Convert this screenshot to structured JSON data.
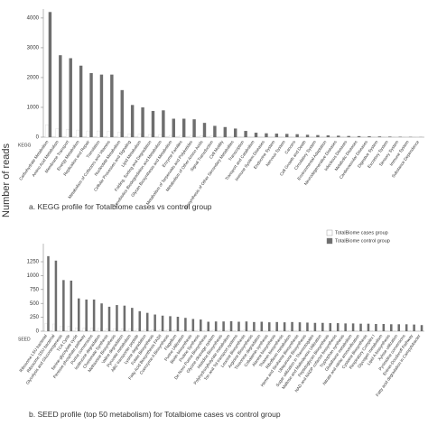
{
  "y_axis_title": "Number of reads",
  "legend_position": "right",
  "chart_data": [
    {
      "type": "bar",
      "axis_name": "KEGG",
      "caption": "a. KEGG profile for Totalbiome cases vs control group",
      "categories": [
        "Carbohydrate Metabolism",
        "Amino Acid Metabolism",
        "Membrane Transport",
        "Energy Metabolism",
        "Replication and Repair",
        "Translation",
        "Metabolism of Cofactors and Vitamins",
        "Nucleotide Metabolism",
        "Cellular Processes and Signaling",
        "Lipid Metabolism",
        "Folding, Sorting and Degradation",
        "Xenobiotics Biodegradation and Metabolism",
        "Glycan Biosynthesis and Metabolism",
        "Enzyme Families",
        "Metabolism of Terpenoids and Polyketides",
        "Metabolism of Other Amino Acids",
        "Signal Transduction",
        "Cell Motility",
        "Biosynthesis of Other Secondary Metabolites",
        "Transcription",
        "Transport and Catabolism",
        "Immune System Diseases",
        "Endocrine System",
        "Nervous System",
        "Cancers",
        "Cell Growth and Death",
        "Circulatory System",
        "Environmental Adaptation",
        "Neurodegenerative Diseases",
        "Infectious Diseases",
        "Metabolic Diseases",
        "Cardiovascular Diseases",
        "Digestive System",
        "Excretory System",
        "Sensory System",
        "Immune System",
        "Substance Dependence"
      ],
      "series": [
        {
          "name": "TotalBiome cases group",
          "color": "#ffffff",
          "values": [
            420,
            280,
            260,
            240,
            210,
            210,
            200,
            160,
            110,
            100,
            90,
            90,
            60,
            60,
            60,
            50,
            40,
            30,
            30,
            20,
            15,
            13,
            12,
            11,
            10,
            8,
            7,
            6,
            5,
            4,
            3,
            3,
            2,
            2,
            2,
            1,
            1
          ]
        },
        {
          "name": "TotalBiome control group",
          "color": "#6e6e6e",
          "values": [
            4200,
            2750,
            2650,
            2400,
            2150,
            2100,
            2100,
            1580,
            1080,
            1000,
            880,
            900,
            620,
            620,
            600,
            480,
            380,
            340,
            290,
            210,
            150,
            130,
            120,
            110,
            100,
            80,
            70,
            60,
            50,
            40,
            35,
            30,
            25,
            20,
            15,
            10,
            5
          ]
        }
      ],
      "ylim": [
        0,
        4300
      ],
      "yticks": [
        0,
        1000,
        2000,
        3000,
        4000
      ]
    },
    {
      "type": "bar",
      "axis_name": "SEED",
      "caption": "b. SEED profile (top 50 metabolism) for Totalbiome cases vs control group",
      "categories": [
        "Ribosome LSU bacterial",
        "Ribosome SSU bacterial",
        "Glycolysis and Gluconeogenesis",
        "TCA Cycle",
        "Serine-glyoxylate cycle",
        "Pentose phosphate pathway",
        "Purine conversions",
        "Isoleucine degradation",
        "Chorismate Synthesis",
        "Methionine Biosynthesis",
        "Valine degradation",
        "Pyruvate metabolism",
        "ABC transporter peptide",
        "Lysine degradation",
        "Folate Biosynthesis",
        "Fatty Acid Biosynthesis FASII",
        "Coenzyme A Biosynthesis",
        "Flagellum",
        "Purine Utilization",
        "Biotin biosynthesis",
        "Proline Synthesis",
        "De Novo Purine Biosynthesis",
        "Glycine cleavage system",
        "Histidine Biosynthesis",
        "Polyhydroxybutyrate metabolism",
        "Ton and Tol transport systems",
        "Leucine Biosynthesis",
        "Arginine Biosynthesis",
        "Threonine degradation",
        "Cobalamin synthesis",
        "Alanine biosynthesis",
        "Thiamin biosynthesis",
        "Riboflavin metabolism",
        "Heme and Siroheme Biosynthesis",
        "Ubiquinone Biosynthesis",
        "Sugar utilization in Thermotogales",
        "Maltose and Maltodextrin Utilization",
        "Peptidoglycan Biosynthesis",
        "NAD and NADP cofactor biosynthesis",
        "Tryptophan synthesis",
        "Glutathione metabolism",
        "Nitrate and nitrite ammonification",
        "Cysteine Biosynthesis",
        "Respiratory Complex I",
        "Glycogen metabolism",
        "Lipid A biosynthesis",
        "Xylose utilization",
        "Pyrimidine conversions",
        "Entner-Doudoroff Pathway",
        "Fatty acid degradation in Campylobacter"
      ],
      "series": [
        {
          "name": "TotalBiome cases group",
          "color": "#ffffff",
          "values": [
            140,
            130,
            90,
            90,
            60,
            57,
            57,
            50,
            44,
            47,
            46,
            42,
            36,
            33,
            30,
            28,
            27,
            26,
            24,
            22,
            21,
            17,
            18,
            18,
            18,
            17,
            18,
            17,
            17,
            16,
            17,
            16,
            17,
            16,
            16,
            15,
            15,
            15,
            15,
            14,
            14,
            14,
            14,
            13,
            13,
            13,
            13,
            13,
            12,
            11
          ]
        },
        {
          "name": "TotalBiome control group",
          "color": "#6e6e6e",
          "values": [
            1350,
            1270,
            920,
            910,
            590,
            570,
            570,
            500,
            440,
            470,
            460,
            420,
            360,
            330,
            300,
            280,
            270,
            260,
            240,
            220,
            210,
            170,
            175,
            175,
            180,
            170,
            175,
            165,
            170,
            160,
            165,
            160,
            165,
            160,
            155,
            150,
            150,
            145,
            145,
            140,
            140,
            135,
            135,
            130,
            130,
            125,
            125,
            125,
            120,
            110
          ]
        }
      ],
      "ylim": [
        0,
        1575
      ],
      "yticks": [
        0,
        250,
        500,
        750,
        1000,
        1250
      ]
    }
  ]
}
